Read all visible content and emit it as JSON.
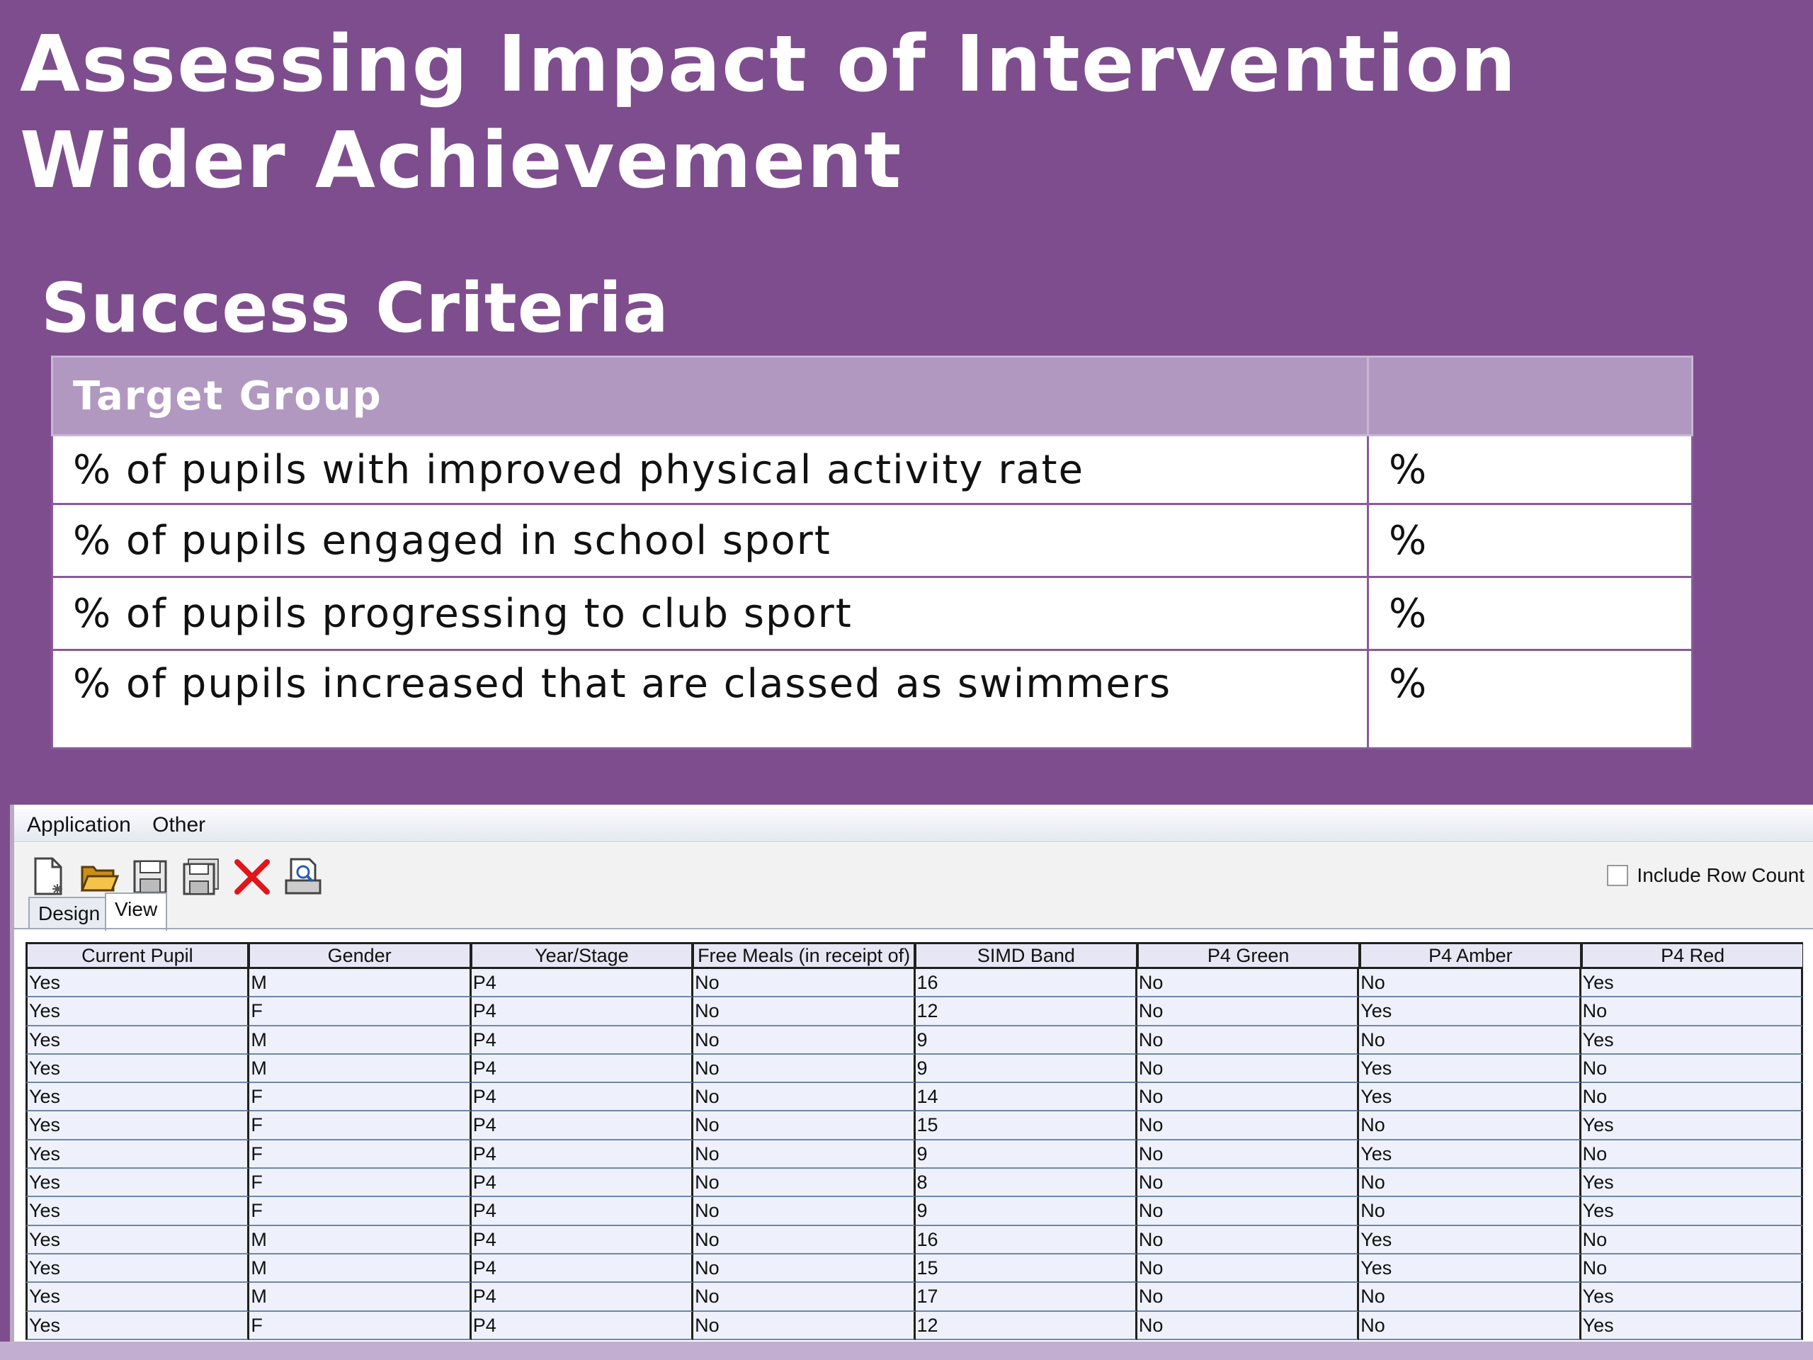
{
  "slide": {
    "title_line1": "Assessing Impact of Intervention",
    "title_line2": "Wider Achievement",
    "subtitle": "Success Criteria",
    "colors": {
      "background": "#7e4d8e",
      "header": "#b198c0"
    }
  },
  "criteria_table": {
    "header": "Target Group",
    "header_value": "",
    "rows": [
      {
        "label": "% of pupils with improved physical activity rate",
        "value": "%"
      },
      {
        "label": "% of pupils engaged in school sport",
        "value": "%"
      },
      {
        "label": "% of pupils progressing to club sport",
        "value": "%"
      },
      {
        "label": "% of pupils increased that are classed as swimmers",
        "value": "%"
      }
    ]
  },
  "app": {
    "menu": [
      "Application",
      "Other"
    ],
    "toolbar_icons": [
      "new-document-icon",
      "open-folder-icon",
      "save-icon",
      "save-all-icon",
      "delete-icon",
      "print-preview-icon"
    ],
    "include_row_count_label": "Include Row Count",
    "include_row_count_checked": false,
    "tabs": [
      "Design",
      "View"
    ],
    "active_tab": "View",
    "grid": {
      "columns": [
        "Current Pupil",
        "Gender",
        "Year/Stage",
        "Free Meals (in receipt of)",
        "SIMD Band",
        "P4 Green",
        "P4 Amber",
        "P4 Red"
      ],
      "rows": [
        [
          "Yes",
          "M",
          "P4",
          "No",
          "16",
          "No",
          "No",
          "Yes"
        ],
        [
          "Yes",
          "F",
          "P4",
          "No",
          "12",
          "No",
          "Yes",
          "No"
        ],
        [
          "Yes",
          "M",
          "P4",
          "No",
          "9",
          "No",
          "No",
          "Yes"
        ],
        [
          "Yes",
          "M",
          "P4",
          "No",
          "9",
          "No",
          "Yes",
          "No"
        ],
        [
          "Yes",
          "F",
          "P4",
          "No",
          "14",
          "No",
          "Yes",
          "No"
        ],
        [
          "Yes",
          "F",
          "P4",
          "No",
          "15",
          "No",
          "No",
          "Yes"
        ],
        [
          "Yes",
          "F",
          "P4",
          "No",
          "9",
          "No",
          "Yes",
          "No"
        ],
        [
          "Yes",
          "F",
          "P4",
          "No",
          "8",
          "No",
          "No",
          "Yes"
        ],
        [
          "Yes",
          "F",
          "P4",
          "No",
          "9",
          "No",
          "No",
          "Yes"
        ],
        [
          "Yes",
          "M",
          "P4",
          "No",
          "16",
          "No",
          "Yes",
          "No"
        ],
        [
          "Yes",
          "M",
          "P4",
          "No",
          "15",
          "No",
          "Yes",
          "No"
        ],
        [
          "Yes",
          "M",
          "P4",
          "No",
          "17",
          "No",
          "No",
          "Yes"
        ],
        [
          "Yes",
          "F",
          "P4",
          "No",
          "12",
          "No",
          "No",
          "Yes"
        ]
      ]
    }
  }
}
